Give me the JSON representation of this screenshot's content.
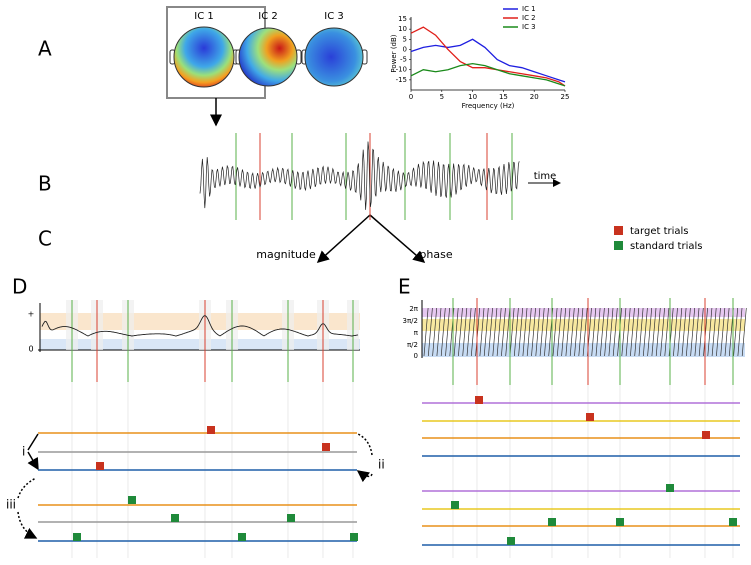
{
  "panels": [
    "A",
    "B",
    "C",
    "D",
    "E"
  ],
  "topomaps": [
    "IC 1",
    "IC 2",
    "IC 3"
  ],
  "psd": {
    "type": "line",
    "xlabel": "Frequency (Hz)",
    "ylabel": "Power (dB)",
    "x": [
      0,
      2,
      4,
      6,
      8,
      10,
      12,
      14,
      16,
      18,
      20,
      22,
      24,
      25
    ],
    "series": [
      {
        "name": "IC 1",
        "color": "#1f1fe0",
        "values": [
          -1,
          1,
          2,
          1,
          2,
          5,
          1,
          -5,
          -8,
          -9,
          -11,
          -13,
          -15,
          -16
        ]
      },
      {
        "name": "IC 2",
        "color": "#e0201a",
        "values": [
          8,
          11,
          7,
          0,
          -6,
          -9,
          -9,
          -10,
          -11,
          -12,
          -13,
          -14,
          -16,
          -18
        ]
      },
      {
        "name": "IC 3",
        "color": "#1a8a1a",
        "values": [
          -13,
          -10,
          -11,
          -10,
          -8,
          -7,
          -8,
          -10,
          -12,
          -13,
          -14,
          -15,
          -17,
          -18
        ]
      }
    ],
    "xlim": [
      0,
      25
    ],
    "ylim": [
      -20,
      16
    ],
    "xticks": [
      0,
      5,
      10,
      15,
      20,
      25
    ],
    "yticks": [
      15,
      10,
      5,
      0,
      -5,
      -10,
      -15
    ],
    "legend": "upper right"
  },
  "time_label": "time",
  "transforms": [
    "magnitude",
    "phase"
  ],
  "trial_legend": [
    {
      "name": "target trials",
      "color": "#c8321e"
    },
    {
      "name": "standard trials",
      "color": "#1f8a3a"
    }
  ],
  "magnitude_axis": [
    "+",
    "0"
  ],
  "phase_axis": [
    "2π",
    "3π/2",
    "π",
    "π/2",
    "0"
  ],
  "annotations": [
    "i",
    "ii",
    "iii"
  ]
}
